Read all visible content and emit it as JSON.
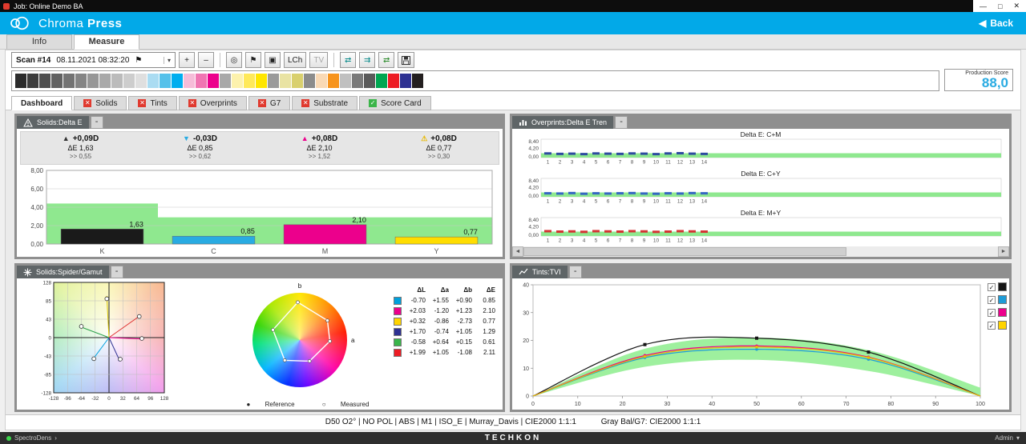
{
  "window": {
    "title": "Job: Online Demo BA",
    "minimize": "—",
    "maximize": "□",
    "close": "✕"
  },
  "header": {
    "app_first": "Chroma ",
    "app_second": "Press",
    "back_arrow": "◀",
    "back": "Back",
    "accent": "#02a9e8"
  },
  "main_tabs": [
    {
      "label": "Info",
      "active": false
    },
    {
      "label": "Measure",
      "active": true
    }
  ],
  "toolbar": {
    "scan_label": "Scan #14",
    "scan_datetime": "08.11.2021 08:32:20",
    "flag_glyph": "⚑",
    "dropdown_glyph": "▾",
    "buttons": [
      {
        "name": "add-scan",
        "label": "+"
      },
      {
        "name": "remove-scan",
        "label": "–"
      },
      {
        "sep": true
      },
      {
        "name": "target",
        "glyph": "◎"
      },
      {
        "name": "flag-filter",
        "glyph": "⚑"
      },
      {
        "name": "display-mode",
        "glyph": "▣"
      },
      {
        "name": "lch-mode",
        "label": "LCh"
      },
      {
        "name": "tv-mode",
        "label": "TV",
        "disabled": true
      },
      {
        "sep": true
      },
      {
        "name": "transfer-left",
        "glyph": "⇄",
        "color": "#0a8a8a"
      },
      {
        "name": "transfer-all",
        "glyph": "⇉",
        "color": "#0a8a8a"
      },
      {
        "name": "transfer-sync",
        "glyph": "⇄",
        "color": "#2a8a2a"
      },
      {
        "name": "save",
        "glyph": "disk"
      }
    ]
  },
  "color_strip": [
    "#2b2b2b",
    "#3d3d3d",
    "#4f4f4f",
    "#616161",
    "#737373",
    "#858585",
    "#979797",
    "#a9a9a9",
    "#bbbbbb",
    "#cdcdcd",
    "#dfdfdf",
    "#aadcf2",
    "#55c1ea",
    "#00aeef",
    "#f6bcd8",
    "#f075b2",
    "#ec008c",
    "#a8a8a8",
    "#fdf2ad",
    "#ffe95a",
    "#ffe600",
    "#9a9a9a",
    "#e9e3a3",
    "#d9d06e",
    "#8c8c8c",
    "#f9d9b5",
    "#f7941d",
    "#c0c0c0",
    "#7a7a7a",
    "#5a5a5a",
    "#00a651",
    "#ed1c24",
    "#2e3192",
    "#231f20"
  ],
  "production_score": {
    "label": "Production Score",
    "value": "88,0"
  },
  "icons": {
    "fail": "✕",
    "pass": "✓",
    "check": "✓",
    "scroll_left": "◄",
    "scroll_right": "►",
    "ref_dot": "●",
    "meas_dot": "○"
  },
  "dashboard_tabs": [
    {
      "label": "Dashboard",
      "status": "none",
      "active": true
    },
    {
      "label": "Solids",
      "status": "fail",
      "active": false
    },
    {
      "label": "Tints",
      "status": "fail",
      "active": false
    },
    {
      "label": "Overprints",
      "status": "fail",
      "active": false
    },
    {
      "label": "G7",
      "status": "fail",
      "active": false
    },
    {
      "label": "Substrate",
      "status": "fail",
      "active": false
    },
    {
      "label": "Score Card",
      "status": "pass",
      "active": false
    }
  ],
  "panels": {
    "solids_delta_e": {
      "title": "Solids:Delta E",
      "collapse": "-",
      "stats": [
        {
          "channel": "K",
          "trend": "up",
          "trend_color": "#333333",
          "density": "+0,09D",
          "delta_e": "ΔE 1,63",
          "range": ">> 0,55"
        },
        {
          "channel": "C",
          "trend": "down",
          "trend_color": "#29abe2",
          "density": "-0,03D",
          "delta_e": "ΔE 0,85",
          "range": ">> 0,62"
        },
        {
          "channel": "M",
          "trend": "up",
          "trend_color": "#ec008c",
          "density": "+0,08D",
          "delta_e": "ΔE 2,10",
          "range": ">> 1,52"
        },
        {
          "channel": "Y",
          "trend": "warn",
          "trend_color": "#e8b800",
          "density": "+0,08D",
          "delta_e": "ΔE 0,77",
          "range": ">> 0,30"
        }
      ]
    },
    "overprints": {
      "title": "Overprints:Delta E Tren",
      "collapse": "-"
    },
    "spider": {
      "title": "Solids:Spider/Gamut",
      "collapse": "-",
      "reference_label": "Reference",
      "measured_label": "Measured",
      "axis_a": "a",
      "axis_b": "b"
    },
    "tvi": {
      "title": "Tints:TVI",
      "collapse": "-"
    }
  },
  "status_bar": {
    "conditions": "D50 O2° | NO POL | ABS | M1 | ISO_E | Murray_Davis | CIE2000 1:1:1",
    "gray_balance": "Gray Bal/G7: CIE2000 1:1:1"
  },
  "footer": {
    "device": "SpectroDens",
    "device_arrow": "›",
    "brand": "TECHKON",
    "user": "Admin",
    "user_arrow": "▾"
  },
  "chart_data": [
    {
      "id": "solids_delta_e_bars",
      "type": "bar",
      "title": "Solids:Delta E",
      "categories": [
        "K",
        "C",
        "M",
        "Y"
      ],
      "values": [
        1.63,
        0.85,
        2.1,
        0.77
      ],
      "value_labels": [
        "1,63",
        "0,85",
        "2,10",
        "0,77"
      ],
      "bar_colors": [
        "#1a1a1a",
        "#29abe2",
        "#ec008c",
        "#ffdd00"
      ],
      "ylim": [
        0,
        8
      ],
      "yticks": [
        0,
        2,
        4,
        6,
        8
      ],
      "ytick_labels": [
        "0,00",
        "2,00",
        "4,00",
        "6,00",
        "8,00"
      ],
      "tolerance_per_category": [
        4.4,
        2.9,
        2.9,
        2.9
      ],
      "tolerance_color": "#8fe88f"
    },
    {
      "id": "overprints_trend",
      "type": "bar",
      "subtype": "small-multiples",
      "ylim": [
        0,
        8.4
      ],
      "ytick_labels": [
        "8,40",
        "4,20",
        "0,00"
      ],
      "x": [
        1,
        2,
        3,
        4,
        5,
        6,
        7,
        8,
        9,
        10,
        11,
        12,
        13,
        14
      ],
      "tolerance": 2.0,
      "tolerance_color": "#8fe88f",
      "charts": [
        {
          "title": "Delta E: C+M",
          "color": "#2d4ba0",
          "values": [
            1.9,
            1.7,
            1.8,
            1.6,
            1.9,
            1.8,
            1.7,
            1.9,
            1.8,
            1.6,
            1.9,
            2.0,
            1.8,
            1.7
          ]
        },
        {
          "title": "Delta E: C+Y",
          "color": "#3567c2",
          "values": [
            1.6,
            1.5,
            1.7,
            1.4,
            1.6,
            1.5,
            1.6,
            1.7,
            1.5,
            1.4,
            1.6,
            1.5,
            1.7,
            1.6
          ]
        },
        {
          "title": "Delta E: M+Y",
          "color": "#d63333",
          "values": [
            2.2,
            2.0,
            2.1,
            1.9,
            2.2,
            2.1,
            2.0,
            2.2,
            2.1,
            1.9,
            2.0,
            2.2,
            2.1,
            2.0
          ]
        }
      ]
    },
    {
      "id": "spider_gamut",
      "type": "scatter",
      "axis_range": [
        -128,
        128
      ],
      "xticks": [
        -128,
        -96,
        -64,
        -32,
        0,
        32,
        64,
        96,
        128
      ],
      "yticks": [
        128,
        85,
        43,
        0,
        -43,
        -85,
        -128
      ],
      "series": [
        {
          "name": "Cyan",
          "color": "#00a0dc",
          "reference": [
            -37,
            -50
          ],
          "measured": [
            -35,
            -49
          ]
        },
        {
          "name": "Magenta",
          "color": "#ec008c",
          "reference": [
            74,
            -3
          ],
          "measured": [
            76,
            -2
          ]
        },
        {
          "name": "Yellow",
          "color": "#d8c400",
          "reference": [
            -5,
            93
          ],
          "measured": [
            -5,
            90
          ]
        },
        {
          "name": "Red",
          "color": "#e03030",
          "reference": [
            68,
            48
          ],
          "measured": [
            70,
            49
          ]
        },
        {
          "name": "Green",
          "color": "#2aa04a",
          "reference": [
            -66,
            25
          ],
          "measured": [
            -64,
            26
          ]
        },
        {
          "name": "Blue",
          "color": "#2e3192",
          "reference": [
            24,
            -52
          ],
          "measured": [
            26,
            -50
          ]
        }
      ],
      "legend": {
        "headers": [
          "ΔL",
          "Δa",
          "Δb",
          "ΔE"
        ],
        "rows": [
          {
            "color": "#00a0dc",
            "values": [
              "-0.70",
              "+1.55",
              "+0.90",
              "0.85"
            ]
          },
          {
            "color": "#ec008c",
            "values": [
              "+2.03",
              "-1.20",
              "+1.23",
              "2.10"
            ]
          },
          {
            "color": "#ffd400",
            "values": [
              "+0.32",
              "-0.86",
              "-2.73",
              "0.77"
            ]
          },
          {
            "color": "#2e3192",
            "values": [
              "+1.70",
              "-0.74",
              "+1.05",
              "1.29"
            ]
          },
          {
            "color": "#39b54a",
            "values": [
              "-0.58",
              "+0.64",
              "+0.15",
              "0.61"
            ]
          },
          {
            "color": "#ed1c24",
            "values": [
              "+1.99",
              "+1.05",
              "-1.08",
              "2.11"
            ]
          }
        ]
      }
    },
    {
      "id": "tints_tvi",
      "type": "line",
      "xlim": [
        0,
        100
      ],
      "ylim": [
        0,
        40
      ],
      "xticks": [
        0,
        10,
        20,
        30,
        40,
        50,
        60,
        70,
        80,
        90,
        100
      ],
      "yticks": [
        0,
        10,
        20,
        30,
        40
      ],
      "tolerance_band": {
        "color": "#9ef09e",
        "upper": [
          [
            0,
            0
          ],
          [
            25,
            17
          ],
          [
            50,
            21
          ],
          [
            75,
            16.5
          ],
          [
            100,
            3
          ]
        ],
        "lower": [
          [
            0,
            0
          ],
          [
            25,
            10.5
          ],
          [
            50,
            13
          ],
          [
            75,
            9
          ],
          [
            100,
            0
          ]
        ]
      },
      "series": [
        {
          "name": "K",
          "color": "#151515",
          "points": [
            [
              0,
              0
            ],
            [
              25,
              18.5
            ],
            [
              50,
              20.8
            ],
            [
              75,
              15.8
            ],
            [
              100,
              0
            ]
          ]
        },
        {
          "name": "C",
          "color": "#1e9cd7",
          "points": [
            [
              0,
              0
            ],
            [
              25,
              13.8
            ],
            [
              50,
              16.8
            ],
            [
              75,
              13.2
            ],
            [
              100,
              0
            ]
          ]
        },
        {
          "name": "M",
          "color": "#ec008c",
          "points": [
            [
              0,
              0
            ],
            [
              25,
              14.6
            ],
            [
              50,
              18.0
            ],
            [
              75,
              14.0
            ],
            [
              100,
              0
            ]
          ]
        },
        {
          "name": "Y",
          "color": "#e3c000",
          "points": [
            [
              0,
              0
            ],
            [
              25,
              14.2
            ],
            [
              50,
              17.6
            ],
            [
              75,
              13.8
            ],
            [
              100,
              0
            ]
          ]
        }
      ],
      "legend_colors": [
        "#151515",
        "#1e9cd7",
        "#ec008c",
        "#ffd400"
      ]
    }
  ]
}
